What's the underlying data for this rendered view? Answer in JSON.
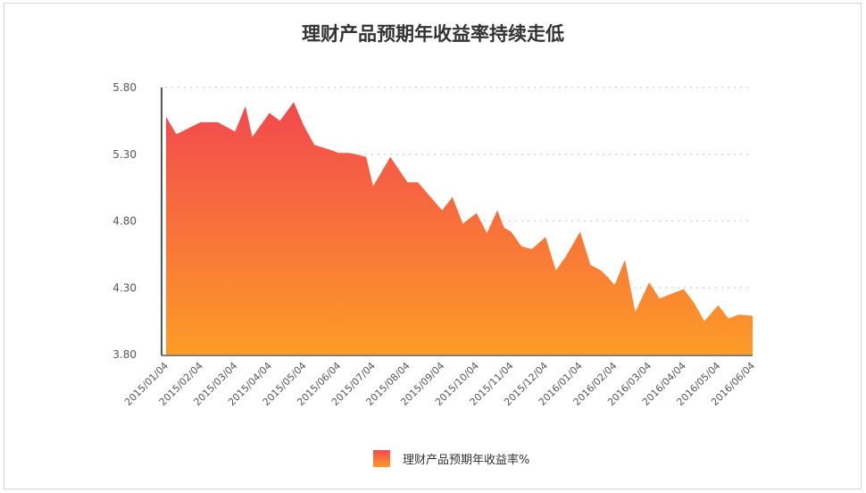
{
  "chart_data": {
    "type": "area",
    "title": "理财产品预期年收益率持续走低",
    "xlabel": "",
    "ylabel": "",
    "ylim": [
      3.8,
      5.8
    ],
    "yticks": [
      "5.80",
      "5.30",
      "4.80",
      "4.30",
      "3.80"
    ],
    "ytick_values": [
      5.8,
      5.3,
      4.8,
      4.3,
      3.8
    ],
    "categories": [
      "2015/01/04",
      "2015/02/04",
      "2015/03/04",
      "2015/04/04",
      "2015/05/04",
      "2015/06/04",
      "2015/07/04",
      "2015/08/04",
      "2015/09/04",
      "2015/10/04",
      "2015/11/04",
      "2015/12/04",
      "2016/01/04",
      "2016/02/04",
      "2016/03/04",
      "2016/04/04",
      "2016/05/04",
      "2016/06/04"
    ],
    "grid": true,
    "legend_position": "bottom-center",
    "series": [
      {
        "name": "理财产品预期年收益率%",
        "color_top": "#f2484e",
        "color_bottom": "#fd9c27",
        "x": [
          0,
          0.3,
          1,
          1.5,
          2,
          2.3,
          2.5,
          3,
          3.3,
          3.7,
          4,
          4.3,
          4.8,
          5,
          5.3,
          5.5,
          5.8,
          6,
          6.5,
          7,
          7.3,
          7.6,
          8,
          8.3,
          8.6,
          9,
          9.3,
          9.6,
          9.8,
          10,
          10.3,
          10.6,
          11,
          11.3,
          11.6,
          12,
          12.3,
          12.6,
          12.8,
          13,
          13.3,
          13.6,
          14,
          14.3,
          14.6,
          15,
          15.3,
          15.6,
          16,
          16.3,
          16.6,
          17
        ],
        "values": [
          5.58,
          5.45,
          5.54,
          5.54,
          5.47,
          5.66,
          5.43,
          5.61,
          5.55,
          5.69,
          5.51,
          5.37,
          5.33,
          5.31,
          5.31,
          5.3,
          5.28,
          5.06,
          5.28,
          5.09,
          5.09,
          5.0,
          4.88,
          4.98,
          4.78,
          4.86,
          4.71,
          4.88,
          4.75,
          4.72,
          4.61,
          4.59,
          4.68,
          4.43,
          4.54,
          4.72,
          4.47,
          4.43,
          4.38,
          4.32,
          4.51,
          4.12,
          4.34,
          4.22,
          4.25,
          4.29,
          4.19,
          4.05,
          4.17,
          4.07,
          4.1,
          4.09
        ]
      }
    ]
  },
  "legend": {
    "label": "理财产品预期年收益率%"
  }
}
